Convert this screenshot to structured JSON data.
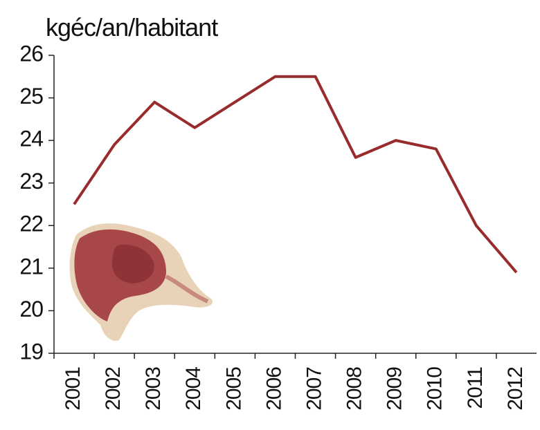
{
  "chart_data": {
    "type": "line",
    "title": "kgéc/an/habitant",
    "categories": [
      "2001",
      "2002",
      "2003",
      "2004",
      "2005",
      "2006",
      "2007",
      "2008",
      "2009",
      "2010",
      "2011",
      "2012"
    ],
    "series": [
      {
        "name": null,
        "color": "#982b2b",
        "values": [
          22.5,
          23.9,
          24.9,
          24.3,
          24.9,
          25.5,
          25.5,
          23.6,
          24.0,
          23.8,
          22.0,
          20.9
        ]
      }
    ],
    "ylim": [
      19,
      26
    ],
    "yticks": [
      19,
      20,
      21,
      22,
      23,
      24,
      25,
      26
    ],
    "grid": false
  }
}
